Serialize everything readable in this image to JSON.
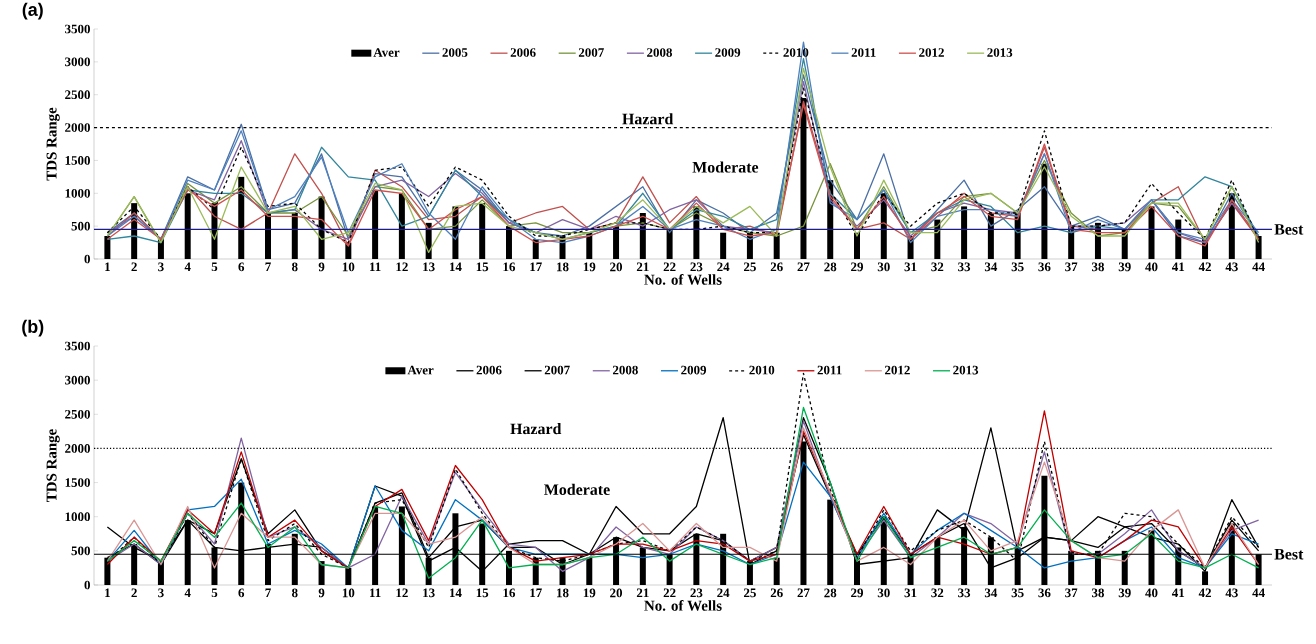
{
  "chart_data": [
    {
      "type": "line",
      "title": "(a)",
      "xlabel": "No. of Wells",
      "ylabel": "TDS Range",
      "categories": [
        "1",
        "2",
        "3",
        "4",
        "5",
        "6",
        "7",
        "8",
        "9",
        "10",
        "11",
        "12",
        "13",
        "14",
        "15",
        "16",
        "17",
        "18",
        "19",
        "20",
        "21",
        "22",
        "23",
        "24",
        "25",
        "26",
        "27",
        "28",
        "29",
        "30",
        "31",
        "32",
        "33",
        "34",
        "35",
        "36",
        "37",
        "38",
        "39",
        "40",
        "41",
        "42",
        "43",
        "44"
      ],
      "ylim": [
        0,
        3500
      ],
      "yticks": [
        0,
        500,
        1000,
        1500,
        2000,
        2500,
        3000,
        3500
      ],
      "legend": "top",
      "marker": "none",
      "series": [
        {
          "name": "Aver",
          "type": "bar",
          "color": "#000000",
          "values": [
            350,
            850,
            300,
            1000,
            850,
            1250,
            700,
            700,
            950,
            250,
            1050,
            1000,
            550,
            800,
            850,
            500,
            300,
            350,
            400,
            500,
            700,
            450,
            800,
            400,
            400,
            400,
            2450,
            1200,
            400,
            1000,
            350,
            600,
            800,
            700,
            700,
            1450,
            500,
            550,
            450,
            800,
            600,
            350,
            1000,
            350
          ]
        },
        {
          "name": "2005",
          "color": "#4a6fa5",
          "values": [
            400,
            700,
            300,
            1250,
            1050,
            2050,
            750,
            850,
            1600,
            300,
            1300,
            1250,
            650,
            1350,
            1050,
            550,
            400,
            350,
            500,
            800,
            1100,
            400,
            900,
            700,
            400,
            700,
            2800,
            1200,
            600,
            1600,
            300,
            750,
            1200,
            500,
            750,
            1100,
            500,
            650,
            450,
            900,
            350,
            250,
            1000,
            350
          ]
        },
        {
          "name": "2006",
          "color": "#c0504d",
          "values": [
            350,
            700,
            300,
            1100,
            650,
            450,
            700,
            1600,
            1000,
            200,
            1350,
            1100,
            600,
            650,
            950,
            550,
            700,
            800,
            450,
            550,
            1250,
            550,
            950,
            450,
            500,
            350,
            2400,
            1000,
            450,
            550,
            300,
            650,
            1000,
            700,
            650,
            1700,
            500,
            450,
            450,
            850,
            1100,
            250,
            850,
            300
          ]
        },
        {
          "name": "2007",
          "color": "#77933c",
          "values": [
            350,
            950,
            250,
            1150,
            850,
            1100,
            700,
            700,
            950,
            350,
            1100,
            1050,
            450,
            500,
            900,
            500,
            550,
            400,
            400,
            500,
            550,
            450,
            700,
            500,
            400,
            350,
            500,
            1450,
            450,
            1100,
            400,
            500,
            950,
            1000,
            700,
            1500,
            700,
            350,
            400,
            850,
            800,
            300,
            1100,
            300
          ]
        },
        {
          "name": "2008",
          "color": "#8064a2",
          "values": [
            400,
            650,
            300,
            1050,
            900,
            1800,
            700,
            750,
            450,
            300,
            1100,
            1200,
            950,
            1300,
            1000,
            550,
            400,
            600,
            450,
            650,
            500,
            750,
            900,
            500,
            450,
            400,
            2700,
            900,
            500,
            900,
            350,
            700,
            850,
            750,
            700,
            1600,
            500,
            500,
            550,
            900,
            400,
            250,
            850,
            350
          ]
        },
        {
          "name": "2009",
          "color": "#31859c",
          "values": [
            300,
            350,
            250,
            1050,
            1000,
            1000,
            700,
            750,
            1700,
            1250,
            1200,
            500,
            650,
            1350,
            950,
            600,
            400,
            300,
            400,
            500,
            1000,
            450,
            750,
            650,
            450,
            600,
            3050,
            1000,
            600,
            1050,
            400,
            700,
            900,
            800,
            400,
            500,
            400,
            500,
            450,
            900,
            900,
            1250,
            1100,
            350
          ]
        },
        {
          "name": "2010",
          "color": "#000000",
          "line_style": "dashed",
          "values": [
            400,
            800,
            300,
            1100,
            750,
            1700,
            800,
            850,
            450,
            250,
            1350,
            1400,
            800,
            1400,
            1200,
            650,
            350,
            350,
            450,
            550,
            550,
            450,
            450,
            500,
            400,
            400,
            2600,
            1050,
            350,
            1000,
            500,
            850,
            1000,
            700,
            700,
            1950,
            500,
            500,
            550,
            1150,
            700,
            300,
            1200,
            300
          ]
        },
        {
          "name": "2011",
          "color": "#4f81bd",
          "values": [
            350,
            650,
            300,
            1200,
            1050,
            1950,
            750,
            950,
            1550,
            400,
            1250,
            1450,
            700,
            300,
            1100,
            600,
            300,
            250,
            350,
            500,
            800,
            450,
            600,
            500,
            300,
            450,
            3300,
            850,
            600,
            1050,
            250,
            650,
            750,
            750,
            650,
            1600,
            400,
            600,
            450,
            900,
            400,
            300,
            900,
            400
          ]
        },
        {
          "name": "2012",
          "color": "#d0504d",
          "values": [
            300,
            600,
            300,
            1050,
            800,
            1050,
            650,
            650,
            600,
            200,
            1050,
            1000,
            450,
            750,
            950,
            500,
            250,
            300,
            350,
            500,
            650,
            450,
            850,
            450,
            350,
            400,
            2350,
            950,
            450,
            950,
            300,
            700,
            950,
            650,
            600,
            1750,
            450,
            400,
            400,
            800,
            350,
            200,
            900,
            300
          ]
        },
        {
          "name": "2013",
          "color": "#9bbb59",
          "values": [
            350,
            950,
            250,
            1100,
            300,
            1400,
            700,
            800,
            300,
            400,
            1150,
            1050,
            100,
            800,
            850,
            500,
            400,
            300,
            400,
            550,
            900,
            450,
            800,
            550,
            800,
            350,
            2900,
            1400,
            350,
            1200,
            400,
            400,
            900,
            1000,
            700,
            1400,
            650,
            350,
            350,
            850,
            850,
            300,
            1100,
            250
          ]
        }
      ],
      "ref_lines": [
        {
          "axis": "y",
          "value": 2000,
          "label": "Hazard",
          "color": "#000000",
          "line_style": "dashed"
        },
        {
          "axis": "y",
          "value": 450,
          "label": "Best",
          "color": "#1c1c8c",
          "line_style": "solid"
        }
      ],
      "annotations": [
        "Moderate"
      ]
    },
    {
      "type": "line",
      "title": "(b)",
      "xlabel": "No. of Wells",
      "ylabel": "TDS Range",
      "categories": [
        "1",
        "2",
        "3",
        "4",
        "5",
        "6",
        "7",
        "8",
        "9",
        "10",
        "11",
        "12",
        "13",
        "14",
        "15",
        "16",
        "17",
        "18",
        "19",
        "20",
        "21",
        "22",
        "23",
        "24",
        "25",
        "26",
        "27",
        "28",
        "29",
        "30",
        "31",
        "32",
        "33",
        "34",
        "35",
        "36",
        "37",
        "38",
        "39",
        "40",
        "41",
        "42",
        "43",
        "44"
      ],
      "ylim": [
        0,
        3500
      ],
      "yticks": [
        0,
        500,
        1000,
        1500,
        2000,
        2500,
        3000,
        3500
      ],
      "legend": "top",
      "marker": "none",
      "series": [
        {
          "name": "Aver",
          "type": "bar",
          "color": "#000000",
          "values": [
            400,
            600,
            350,
            950,
            550,
            1500,
            600,
            750,
            350,
            250,
            1150,
            1150,
            400,
            1050,
            900,
            500,
            400,
            400,
            400,
            700,
            550,
            450,
            750,
            750,
            350,
            400,
            2100,
            1250,
            400,
            1000,
            450,
            700,
            850,
            700,
            550,
            1600,
            500,
            500,
            500,
            800,
            550,
            200,
            900,
            450
          ]
        },
        {
          "name": "2006",
          "color": "#000000",
          "values": [
            850,
            550,
            350,
            950,
            750,
            1850,
            750,
            1100,
            500,
            250,
            1450,
            1300,
            350,
            550,
            200,
            600,
            650,
            650,
            450,
            1150,
            750,
            750,
            1150,
            2450,
            300,
            500,
            2450,
            1500,
            300,
            350,
            400,
            1100,
            800,
            2300,
            500,
            700,
            650,
            1000,
            850,
            700,
            600,
            200,
            1250,
            550
          ]
        },
        {
          "name": "2007",
          "color": "#000000",
          "values": [
            400,
            600,
            300,
            950,
            550,
            500,
            550,
            600,
            550,
            250,
            1200,
            1350,
            400,
            850,
            950,
            550,
            550,
            300,
            450,
            700,
            550,
            500,
            750,
            650,
            350,
            550,
            2200,
            1300,
            450,
            1000,
            450,
            700,
            900,
            250,
            400,
            700,
            650,
            550,
            850,
            900,
            500,
            250,
            950,
            500
          ]
        },
        {
          "name": "2008",
          "color": "#8064a2",
          "values": [
            350,
            600,
            300,
            1050,
            600,
            2150,
            700,
            850,
            550,
            250,
            450,
            1300,
            600,
            1650,
            1100,
            600,
            550,
            200,
            400,
            850,
            550,
            450,
            850,
            650,
            350,
            550,
            2400,
            1300,
            400,
            950,
            400,
            700,
            1050,
            900,
            600,
            1950,
            450,
            450,
            750,
            1100,
            500,
            250,
            800,
            950
          ]
        },
        {
          "name": "2009",
          "color": "#0070c0",
          "values": [
            350,
            800,
            300,
            1100,
            1150,
            1550,
            600,
            800,
            600,
            250,
            1450,
            800,
            500,
            1250,
            950,
            550,
            450,
            450,
            450,
            450,
            400,
            450,
            600,
            500,
            300,
            450,
            1800,
            1300,
            400,
            1050,
            450,
            800,
            1050,
            800,
            550,
            250,
            350,
            400,
            650,
            850,
            400,
            250,
            750,
            600
          ]
        },
        {
          "name": "2010",
          "color": "#000000",
          "line_style": "dashed",
          "values": [
            350,
            700,
            300,
            1050,
            550,
            1850,
            650,
            900,
            450,
            250,
            1200,
            1250,
            550,
            1700,
            1050,
            550,
            400,
            350,
            450,
            600,
            650,
            500,
            850,
            650,
            350,
            500,
            3100,
            1400,
            400,
            1100,
            500,
            800,
            950,
            700,
            350,
            2100,
            450,
            450,
            1050,
            1000,
            600,
            250,
            1000,
            550
          ]
        },
        {
          "name": "2011",
          "color": "#c00000",
          "values": [
            300,
            700,
            350,
            1100,
            750,
            1950,
            700,
            950,
            500,
            250,
            1150,
            1400,
            650,
            1750,
            1250,
            550,
            350,
            400,
            450,
            600,
            600,
            500,
            650,
            600,
            350,
            450,
            2250,
            1350,
            450,
            1150,
            450,
            700,
            600,
            450,
            550,
            2550,
            500,
            400,
            650,
            950,
            850,
            250,
            850,
            300
          ]
        },
        {
          "name": "2012",
          "color": "#d99694",
          "values": [
            350,
            950,
            300,
            1150,
            250,
            1050,
            700,
            700,
            300,
            250,
            1050,
            1050,
            600,
            700,
            1000,
            550,
            300,
            300,
            400,
            600,
            900,
            500,
            900,
            550,
            550,
            350,
            2300,
            1350,
            350,
            550,
            300,
            700,
            950,
            500,
            650,
            1800,
            650,
            400,
            350,
            800,
            1100,
            250,
            900,
            300
          ]
        },
        {
          "name": "2013",
          "color": "#00b050",
          "values": [
            350,
            650,
            350,
            1050,
            700,
            1200,
            550,
            850,
            300,
            250,
            1150,
            1050,
            100,
            400,
            950,
            250,
            300,
            300,
            400,
            450,
            700,
            350,
            600,
            450,
            300,
            400,
            2600,
            1500,
            350,
            1000,
            400,
            550,
            700,
            450,
            550,
            1100,
            650,
            400,
            450,
            750,
            350,
            250,
            450,
            250
          ]
        }
      ],
      "ref_lines": [
        {
          "axis": "y",
          "value": 2000,
          "label": "Hazard",
          "color": "#000000",
          "line_style": "dotted"
        },
        {
          "axis": "y",
          "value": 450,
          "label": "Best",
          "color": "#000000",
          "line_style": "solid"
        }
      ],
      "annotations": [
        "Moderate"
      ]
    }
  ]
}
